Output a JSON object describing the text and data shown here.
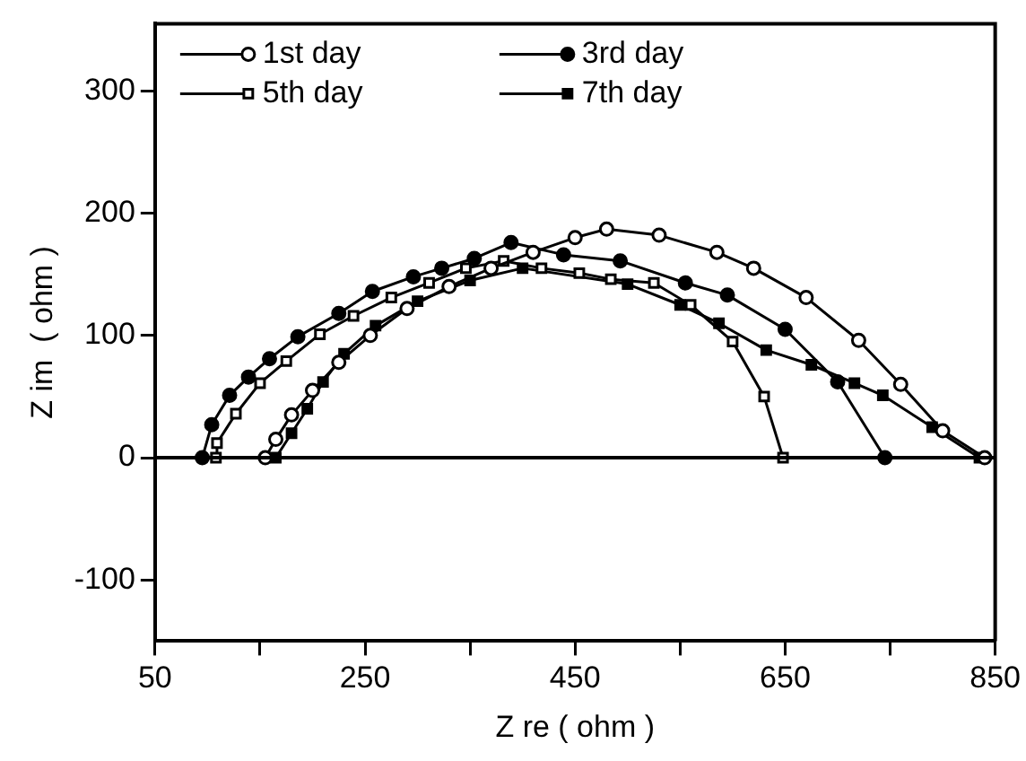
{
  "chart_data": {
    "type": "line",
    "xlabel": "Z re ( ohm )",
    "ylabel": "Z im  ( ohm )",
    "xlim": [
      50,
      850
    ],
    "xticks": [
      50,
      {
        "value": 150,
        "label": null
      },
      250,
      {
        "value": 350,
        "label": null
      },
      450,
      {
        "value": 550,
        "label": null
      },
      650,
      {
        "value": 750,
        "label": null
      },
      850
    ],
    "ylim": [
      -150,
      355
    ],
    "yticks": [
      -100,
      0,
      100,
      200,
      300
    ],
    "grid": false,
    "legend": "top left",
    "line_style": "solid",
    "ref_lines": [
      {
        "axis": "y",
        "value": 0
      }
    ],
    "series": [
      {
        "name": "1st day",
        "color": "#ffffff",
        "marker": "circle",
        "x": [
          155,
          165,
          180,
          200,
          225,
          255,
          290,
          330,
          370,
          410,
          450,
          480,
          530,
          585,
          620,
          670,
          720,
          760,
          800,
          840
        ],
        "values": [
          0,
          15,
          35,
          55,
          78,
          100,
          122,
          140,
          155,
          168,
          180,
          187,
          182,
          168,
          155,
          131,
          96,
          60,
          22,
          0
        ]
      },
      {
        "name": "3rd day",
        "color": "#000000",
        "marker": "circle",
        "x": [
          95,
          104,
          121,
          139,
          159,
          186,
          225,
          257,
          296,
          323,
          354,
          389,
          439,
          493,
          555,
          595,
          650,
          700,
          745
        ],
        "values": [
          0,
          27,
          51,
          66,
          81,
          99,
          118,
          136,
          148,
          155,
          163,
          176,
          166,
          161,
          143,
          133,
          105,
          62,
          0
        ]
      },
      {
        "name": "5th day",
        "color": "#ffffff",
        "marker": "square",
        "x": [
          108,
          109,
          127,
          150,
          175,
          207,
          239,
          275,
          311,
          346,
          382,
          418,
          454,
          484,
          525,
          560,
          600,
          630,
          648
        ],
        "values": [
          0,
          12,
          36,
          61,
          79,
          101,
          116,
          131,
          143,
          155,
          161,
          155,
          151,
          146,
          143,
          125,
          95,
          50,
          0
        ]
      },
      {
        "name": "7th day",
        "color": "#000000",
        "marker": "square",
        "x": [
          165,
          180,
          195,
          210,
          230,
          260,
          300,
          350,
          400,
          450,
          500,
          550,
          587,
          632,
          675,
          716,
          743,
          790,
          835
        ],
        "values": [
          0,
          20,
          40,
          62,
          85,
          108,
          128,
          145,
          155,
          null,
          142,
          125,
          110,
          88,
          76,
          61,
          51,
          25,
          0
        ]
      }
    ]
  }
}
